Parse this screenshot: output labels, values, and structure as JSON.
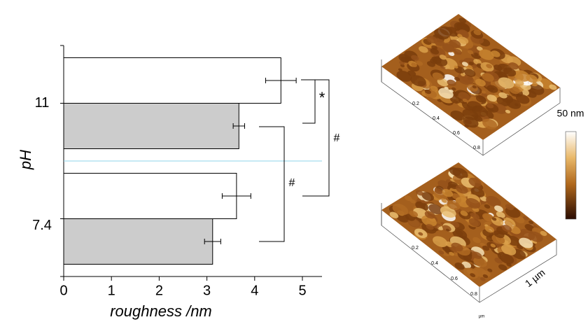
{
  "chart_data": {
    "type": "hbar",
    "categories": [
      "11",
      "7.4"
    ],
    "series": [
      {
        "color": "#ffffff",
        "values": [
          4.55,
          3.62
        ],
        "errors": [
          0.32,
          0.3
        ]
      },
      {
        "color": "#cccccc",
        "values": [
          3.67,
          3.12
        ],
        "errors": [
          0.12,
          0.17
        ]
      }
    ],
    "xlim": [
      0,
      5.5
    ],
    "xticks": [
      0,
      1,
      2,
      3,
      4,
      5
    ],
    "xlabel": "roughness /nm",
    "ylabel": "pH",
    "annotations": [
      "*",
      "#",
      "#"
    ]
  },
  "images": {
    "scale_labels": [
      "0.2",
      "0.4",
      "0.6",
      "0.8"
    ],
    "unit": "µm",
    "scale_bar": "1 µm",
    "colorbar_label": "50 nm"
  }
}
